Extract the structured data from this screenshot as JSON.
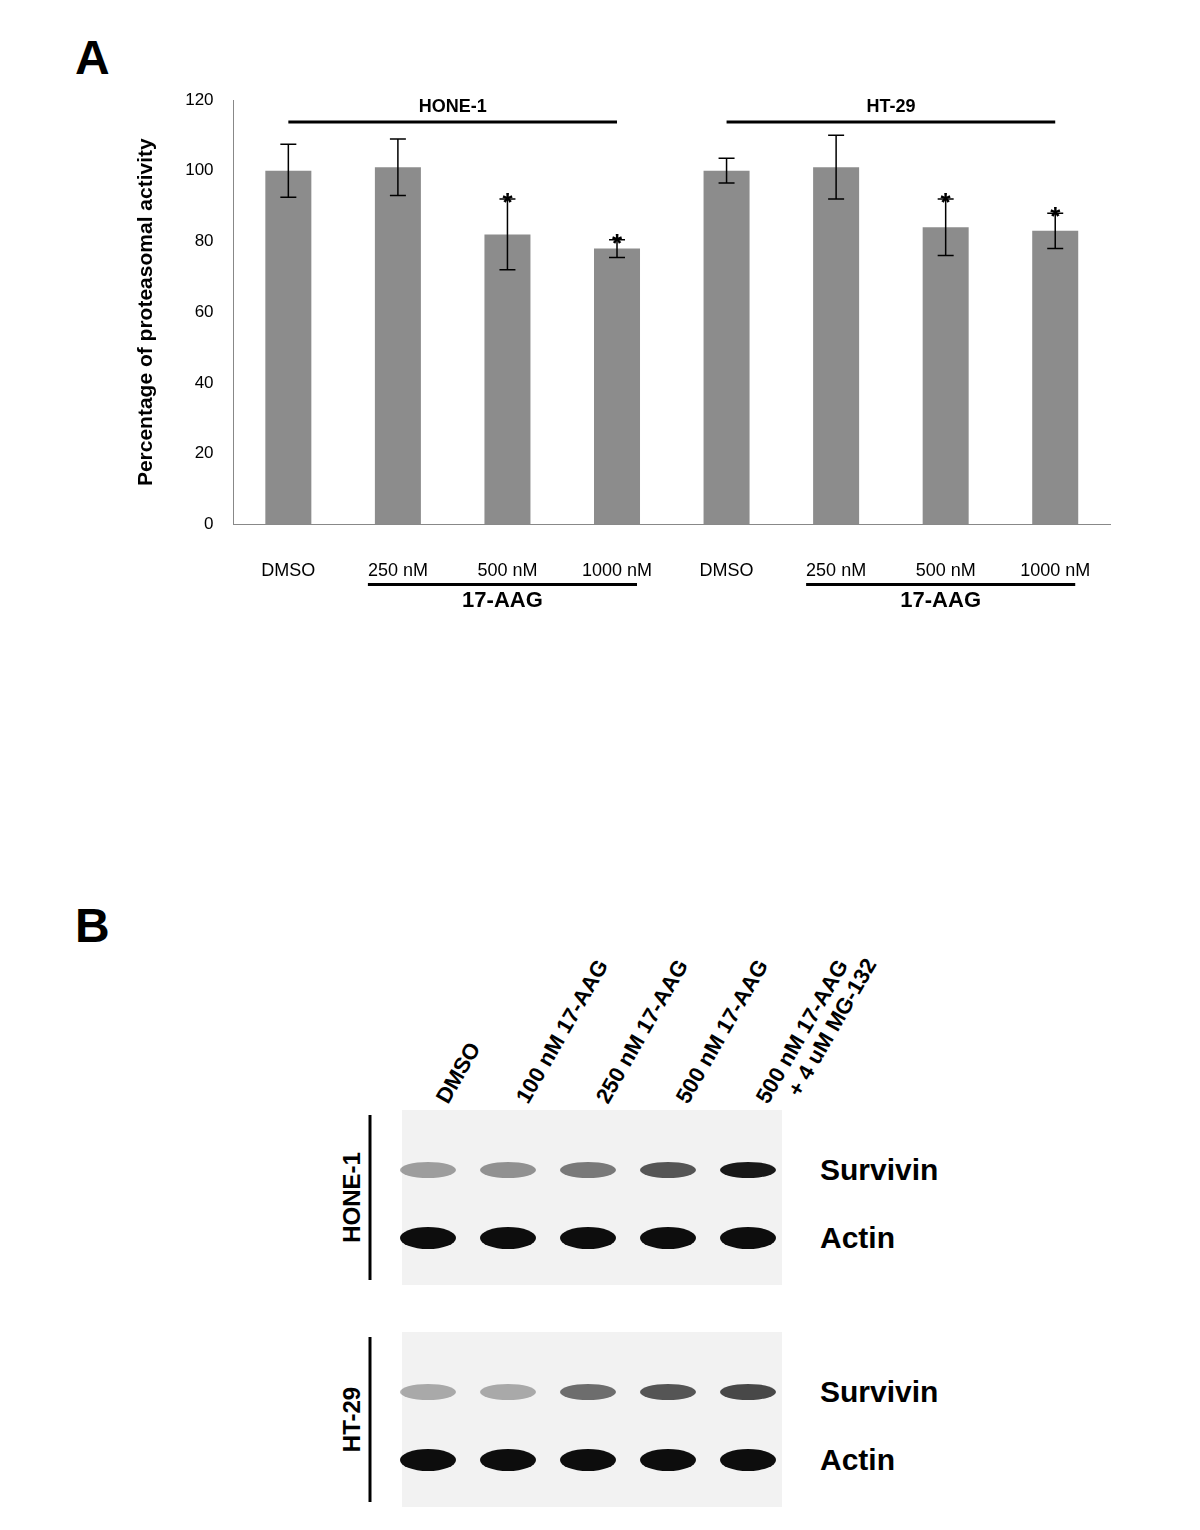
{
  "chart_data": {
    "type": "bar",
    "panel_label": "A",
    "y_label": "Percentage of proteasomal activity",
    "categories": [
      "DMSO",
      "250 nM",
      "500 nM",
      "1000 nM",
      "DMSO",
      "250 nM",
      "500 nM",
      "1000 nM"
    ],
    "values": [
      100,
      101,
      82,
      78,
      100,
      101,
      84,
      83
    ],
    "errors": [
      7.5,
      8,
      10,
      2.5,
      3.5,
      9,
      8,
      5
    ],
    "annotations": [
      null,
      null,
      "*",
      "*",
      null,
      null,
      "*",
      "*"
    ],
    "groups": [
      {
        "label": "HONE-1",
        "from": 0,
        "to": 3
      },
      {
        "label": "HT-29",
        "from": 4,
        "to": 7
      }
    ],
    "treatment_groups": [
      {
        "label": "17-AAG",
        "from": 1,
        "to": 3
      },
      {
        "label": "17-AAG",
        "from": 5,
        "to": 7
      }
    ],
    "color": "#8c8c8c",
    "ylim": [
      0,
      120
    ],
    "yticks": [
      0,
      20,
      40,
      60,
      80,
      100,
      120
    ],
    "grid": false
  },
  "blot": {
    "panel_label": "B",
    "lanes": [
      "DMSO",
      "100 nM 17-AAG",
      "250 nM 17-AAG",
      "500 nM 17-AAG",
      "500 nM 17-AAG + 4 uM MG-132"
    ],
    "panels": [
      {
        "cell_line": "HONE-1",
        "rows": [
          {
            "label": "Survivin",
            "intensities": [
              0.35,
              0.4,
              0.5,
              0.65,
              0.9
            ]
          },
          {
            "label": "Actin",
            "intensities": [
              0.95,
              0.95,
              0.95,
              0.95,
              0.95
            ]
          }
        ]
      },
      {
        "cell_line": "HT-29",
        "rows": [
          {
            "label": "Survivin",
            "intensities": [
              0.3,
              0.3,
              0.55,
              0.65,
              0.7
            ]
          },
          {
            "label": "Actin",
            "intensities": [
              0.95,
              0.95,
              0.95,
              0.95,
              0.95
            ]
          }
        ]
      }
    ]
  }
}
